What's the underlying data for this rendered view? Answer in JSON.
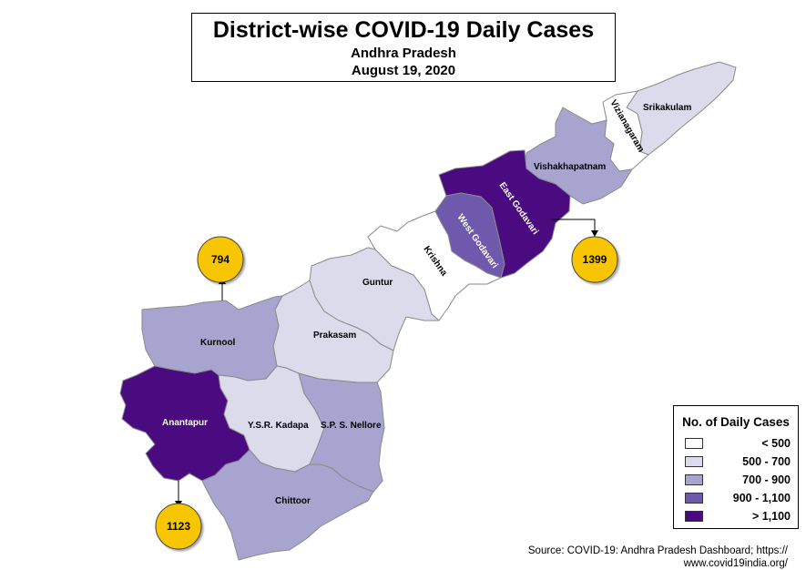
{
  "title": {
    "main": "District-wise COVID-19 Daily Cases",
    "state": "Andhra Pradesh",
    "date": "August 19, 2020"
  },
  "legend": {
    "title": "No. of Daily Cases",
    "items": [
      {
        "label": "< 500",
        "color": "#ffffff"
      },
      {
        "label": "500 - 700",
        "color": "#dcdbec"
      },
      {
        "label": "700 - 900",
        "color": "#a7a5cf"
      },
      {
        "label": "900 - 1,100",
        "color": "#6f59ac"
      },
      {
        "label": "> 1,100",
        "color": "#4a0a80"
      }
    ]
  },
  "districts": {
    "srikakulam": {
      "name": "Srikakulam",
      "color": "#dcdbec"
    },
    "vizianagaram": {
      "name": "Vizianagaram",
      "color": "#ffffff"
    },
    "vishakhapatnam": {
      "name": "Vishakhapatnam",
      "color": "#a7a5cf"
    },
    "east_godavari": {
      "name": "East Godavari",
      "color": "#4a0a80"
    },
    "west_godavari": {
      "name": "West Godavari",
      "color": "#6f59ac"
    },
    "krishna": {
      "name": "Krishna",
      "color": "#ffffff"
    },
    "guntur": {
      "name": "Guntur",
      "color": "#dcdbec"
    },
    "prakasam": {
      "name": "Prakasam",
      "color": "#dcdbec"
    },
    "kurnool": {
      "name": "Kurnool",
      "color": "#a7a5cf"
    },
    "anantapur": {
      "name": "Anantapur",
      "color": "#4a0a80"
    },
    "ysr_kadapa": {
      "name": "Y.S.R. Kadapa",
      "color": "#dcdbec"
    },
    "sps_nellore": {
      "name": "S.P. S. Nellore",
      "color": "#a7a5cf"
    },
    "chittoor": {
      "name": "Chittoor",
      "color": "#a7a5cf"
    }
  },
  "callouts": {
    "kurnool": "794",
    "east_godavari": "1399",
    "anantapur": "1123",
    "color": "#f7c600"
  },
  "source": {
    "line1": "Source: COVID-19: Andhra Pradesh Dashboard; https://",
    "line2": "www.covid19india.org/"
  }
}
